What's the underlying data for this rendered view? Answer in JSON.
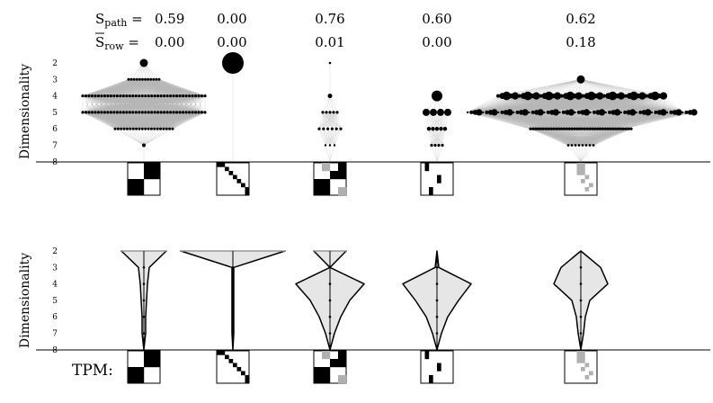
{
  "labels": {
    "s_path_sym": "S",
    "s_path_sub": "path",
    "s_row_sym": "S",
    "s_row_sub": "row",
    "eq": " = ",
    "ylabel": "Dimensionality",
    "tpm": "TPM:"
  },
  "panels": [
    {
      "s_path": "0.59",
      "s_row": "0.00"
    },
    {
      "s_path": "0.00",
      "s_row": "0.00"
    },
    {
      "s_path": "0.76",
      "s_row": "0.01"
    },
    {
      "s_path": "0.60",
      "s_row": "0.00"
    },
    {
      "s_path": "0.62",
      "s_row": "0.18"
    }
  ],
  "y_ticks": [
    "2",
    "3",
    "4",
    "5",
    "6",
    "7",
    "8"
  ],
  "colors": {
    "node": "#000000",
    "edge": "#b8b8b8",
    "fill": "#e6e6e6",
    "gray_cell": "#b0b0b0"
  }
}
